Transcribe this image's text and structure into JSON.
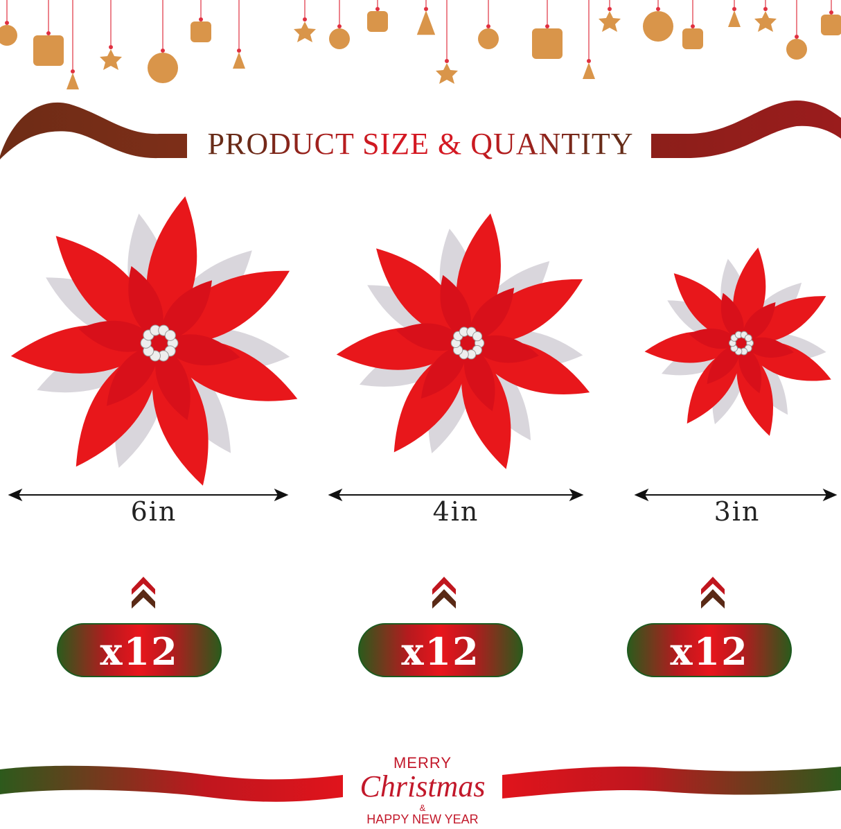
{
  "title": "PRODUCT SIZE & QUANTITY",
  "products": [
    {
      "size_label": "6in",
      "quantity_label": "x12"
    },
    {
      "size_label": "4in",
      "quantity_label": "x12"
    },
    {
      "size_label": "3in",
      "quantity_label": "x12"
    }
  ],
  "greeting": {
    "line1": "MERRY",
    "line2": "Christmas",
    "line3": "&",
    "line4": "HAPPY NEW YEAR"
  },
  "colors": {
    "petal_red": "#e8171b",
    "silver": "#d9d6dc",
    "ribbon_brown": "#7a2e18",
    "ribbon_red": "#d4161f",
    "ribbon_green": "#2d5a1c",
    "gingerbread": "#d9954a"
  },
  "icons": [
    "hanging-ornament-icon",
    "poinsettia-flower",
    "double-arrow-icon",
    "chevron-up-icon"
  ]
}
